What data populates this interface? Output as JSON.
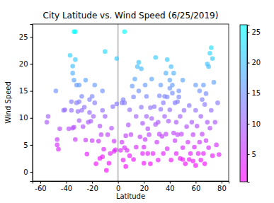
{
  "chart_data": {
    "type": "scatter",
    "title": "City Latitude vs. Wind Speed (6/25/2019)",
    "x_label": "Latitude",
    "y_label": "Wind Speed",
    "marker": "o",
    "x": [
      -34,
      -33,
      -37,
      -33,
      -10,
      -1,
      -35,
      -35,
      -34,
      -32,
      -30,
      -18,
      -12,
      -25,
      -48,
      -55,
      -54,
      -47,
      -47,
      -46,
      -45,
      -42,
      -41,
      -38,
      -36,
      -36,
      -35,
      -34,
      -33,
      -32,
      -31,
      -30,
      -30,
      -28,
      -27,
      -26,
      -25,
      -24,
      -22,
      -22,
      -21,
      -20,
      -19,
      -18,
      -17,
      -15,
      -14,
      -13,
      -12,
      -11,
      -10,
      -9,
      -8,
      -7,
      -6,
      -5,
      -4,
      -3,
      -3,
      -2,
      -1,
      -14,
      -12,
      -20,
      -28,
      -23,
      5,
      2,
      3,
      4,
      5,
      3,
      4,
      5,
      6,
      6,
      7,
      8,
      9,
      10,
      11,
      12,
      13,
      14,
      15,
      16,
      16,
      17,
      18,
      18,
      19,
      19,
      20,
      20,
      21,
      22,
      22,
      23,
      23,
      24,
      25,
      25,
      26,
      27,
      28,
      29,
      29,
      30,
      31,
      31,
      32,
      33,
      33,
      34,
      35,
      35,
      36,
      37,
      37,
      38,
      38,
      39,
      40,
      40,
      41,
      41,
      42,
      42,
      43,
      43,
      44,
      44,
      45,
      45,
      46,
      47,
      47,
      48,
      48,
      49,
      50,
      50,
      51,
      52,
      53,
      54,
      55,
      56,
      57,
      58,
      58,
      59,
      60,
      60,
      61,
      62,
      63,
      63,
      64,
      64,
      65,
      65,
      66,
      66,
      67,
      67,
      68,
      68,
      69,
      69,
      70,
      70,
      71,
      71,
      72,
      72,
      73,
      73,
      74,
      75,
      76,
      77,
      78,
      60,
      55,
      50,
      46,
      36,
      32,
      26,
      21,
      12,
      9,
      14,
      38,
      40
    ],
    "values": [
      26,
      26,
      21.6,
      20.8,
      22.3,
      21,
      19.6,
      18.3,
      17,
      16.1,
      16.1,
      16.1,
      15,
      17,
      15,
      9.2,
      10.3,
      6,
      5,
      4.2,
      8,
      11.4,
      11.5,
      8,
      13,
      11.4,
      8.1,
      8.3,
      6,
      12.8,
      11.2,
      13,
      9.5,
      14,
      8.4,
      12,
      5.9,
      3.3,
      11,
      13.4,
      9.4,
      14,
      10.3,
      12.8,
      1.5,
      5.7,
      8.5,
      6.9,
      11.4,
      4.2,
      10.3,
      0.3,
      6.9,
      1.6,
      3.4,
      8.1,
      12.1,
      3.8,
      5.7,
      4.1,
      12.6,
      2.5,
      2.8,
      5.8,
      11.4,
      9.2,
      26,
      4,
      12.8,
      13.4,
      12.8,
      5.5,
      2.2,
      4.5,
      1,
      6.7,
      4,
      8.7,
      3,
      6.9,
      15.9,
      13.9,
      17.2,
      10.3,
      19.5,
      20.3,
      15,
      6.5,
      19.1,
      12,
      9,
      3.4,
      1.6,
      4.6,
      16.1,
      14,
      10.3,
      8,
      3.4,
      6.9,
      11.9,
      1.5,
      17.2,
      3.4,
      12.1,
      21.2,
      8.8,
      5.5,
      9.2,
      2.2,
      14.1,
      16.1,
      11.6,
      6.6,
      12.8,
      3.4,
      10.3,
      18.3,
      7,
      13.9,
      4.3,
      9.4,
      17,
      11.5,
      19.5,
      2.2,
      16.1,
      14.6,
      18.3,
      7.2,
      12.8,
      5.8,
      9.2,
      3.4,
      6.9,
      15,
      13.9,
      2.5,
      10.3,
      7,
      17,
      4.5,
      11.4,
      1.5,
      8.4,
      5.5,
      12.3,
      3.4,
      9.2,
      6.9,
      2,
      4.6,
      11.4,
      1.2,
      8.5,
      3.4,
      5.5,
      15,
      10.3,
      2.2,
      13.4,
      7,
      16.1,
      3.4,
      12.5,
      1.5,
      14.5,
      5.8,
      9.2,
      20,
      19.5,
      4.5,
      22,
      8.1,
      23,
      11.4,
      21,
      3,
      16.6,
      9.2,
      5,
      12.8,
      3.2,
      16.1,
      2.3,
      2.3,
      13,
      14,
      7,
      9.9,
      6,
      2.3,
      11.5,
      4.6,
      20.8,
      15.5
    ],
    "xlim": [
      -66,
      85.5
    ],
    "xticks": [
      -60,
      -40,
      -20,
      0,
      20,
      40,
      60,
      80
    ],
    "ylim": [
      -1.7,
      27.4
    ],
    "yticks": [
      0,
      5,
      10,
      15,
      20,
      25
    ],
    "vlines": [
      0
    ],
    "colorbar": {
      "range": [
        0.5,
        26.2
      ],
      "ticks": [
        5,
        10,
        15,
        20,
        25
      ]
    }
  }
}
